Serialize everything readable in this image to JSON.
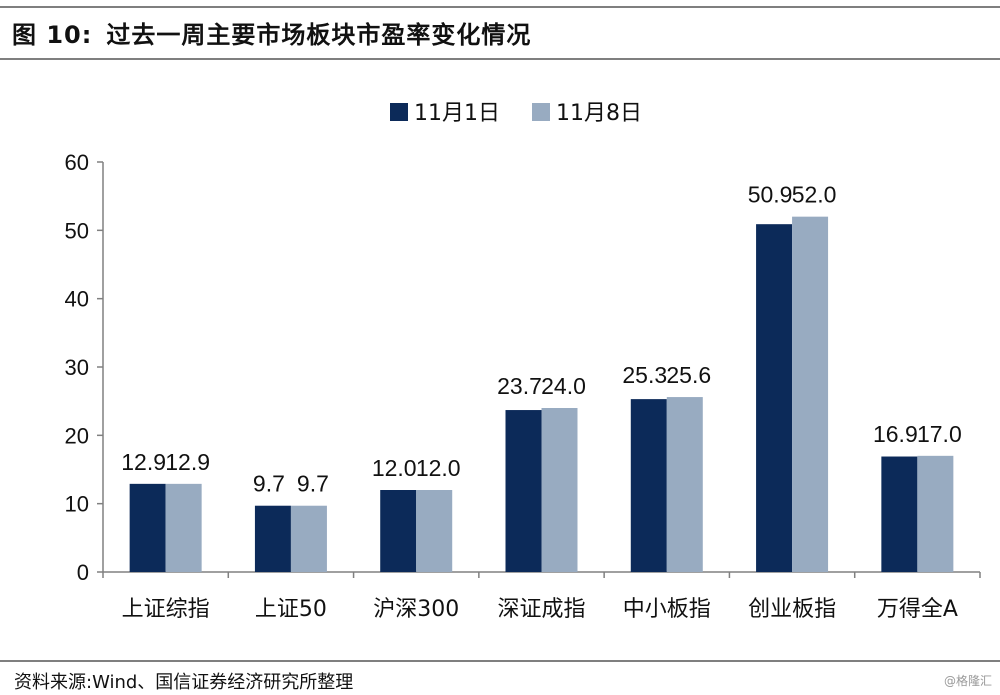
{
  "header": {
    "figure_label": "图 10:",
    "title": "过去一周主要市场板块市盈率变化情况"
  },
  "footer": {
    "source": "资料来源:Wind、国信证券经济研究所整理",
    "watermark": "@格隆汇"
  },
  "colors": {
    "series1": "#0c2a59",
    "series2": "#98abc1",
    "axis": "#808080"
  },
  "chart_data": {
    "type": "bar",
    "title": "",
    "xlabel": "",
    "ylabel": "",
    "categories": [
      "上证综指",
      "上证50",
      "沪深300",
      "深证成指",
      "中小板指",
      "创业板指",
      "万得全A"
    ],
    "series": [
      {
        "name": "11月1日",
        "values": [
          12.9,
          9.7,
          12.0,
          23.7,
          25.3,
          50.9,
          16.9
        ],
        "labels": [
          "12.9",
          "9.7",
          "12.0",
          "23.7",
          "25.3",
          "50.9",
          "16.9"
        ]
      },
      {
        "name": "11月8日",
        "values": [
          12.9,
          9.7,
          12.0,
          24.0,
          25.6,
          52.0,
          17.0
        ],
        "labels": [
          "12.9",
          "9.7",
          "12.0",
          "24.0",
          "25.6",
          "52.0",
          "17.0"
        ]
      }
    ],
    "ylim": [
      0,
      60
    ],
    "yticks": [
      "0",
      "10",
      "20",
      "30",
      "40",
      "50",
      "60"
    ],
    "grid": false,
    "legend": "top-center"
  }
}
